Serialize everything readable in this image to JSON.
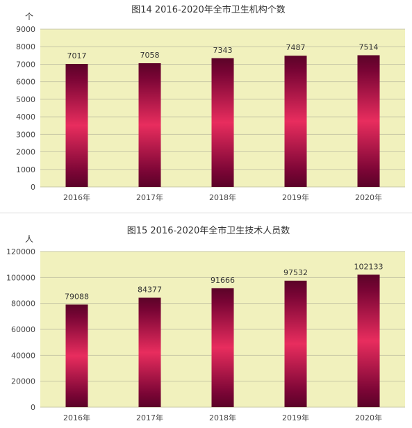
{
  "colors": {
    "plot_background": "#f1f1bd",
    "gridline": "#c7c7a6",
    "bar_dark": "#7a0535",
    "bar_mid": "#e82d5e",
    "bar_edge": "#5b0328"
  },
  "chart_data": [
    {
      "type": "bar",
      "title": "图14   2016-2020年全市卫生机构个数",
      "unit": "个",
      "categories": [
        "2016年",
        "2017年",
        "2018年",
        "2019年",
        "2020年"
      ],
      "values": [
        7017,
        7058,
        7343,
        7487,
        7514
      ],
      "data_labels": [
        "7017",
        "7058",
        "7343",
        "7487",
        "7514"
      ],
      "yticks": [
        "0",
        "1000",
        "2000",
        "3000",
        "4000",
        "5000",
        "6000",
        "7000",
        "8000",
        "9000"
      ],
      "ylim": [
        0,
        9000
      ],
      "grid": true,
      "legend": "none"
    },
    {
      "type": "bar",
      "title": "图15   2016-2020年全市卫生技术人员数",
      "unit": "人",
      "categories": [
        "2016年",
        "2017年",
        "2018年",
        "2019年",
        "2020年"
      ],
      "values": [
        79088,
        84377,
        91666,
        97532,
        102133
      ],
      "data_labels": [
        "79088",
        "84377",
        "91666",
        "97532",
        "102133"
      ],
      "yticks": [
        "0",
        "20000",
        "40000",
        "60000",
        "80000",
        "100000",
        "120000"
      ],
      "ylim": [
        0,
        120000
      ],
      "grid": true,
      "legend": "none"
    }
  ]
}
